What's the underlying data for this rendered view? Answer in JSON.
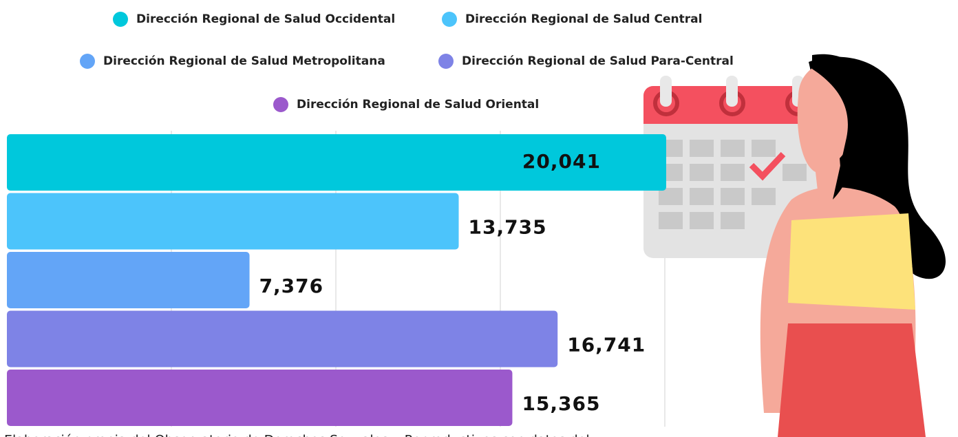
{
  "chart_data": {
    "type": "hbar",
    "categories": [
      "Dirección Regional de Salud Occidental",
      "Dirección Regional de Salud Central",
      "Dirección Regional de Salud Metropolitana",
      "Dirección Regional de Salud Para-Central",
      "Dirección Regional de Salud Oriental"
    ],
    "values": [
      20041,
      13735,
      7376,
      16741,
      15365
    ],
    "value_labels": [
      "20,041",
      "13,735",
      "7,376",
      "16,741",
      "15,365"
    ],
    "colors": [
      "#00c8dc",
      "#4cc4fb",
      "#63a5f7",
      "#7e83e6",
      "#9b59cc"
    ],
    "xlim": [
      0,
      25000
    ],
    "xticks": [
      5000,
      10000,
      15000,
      20000,
      25000
    ],
    "grid": true,
    "source": "Elaboración propia del Observatorio de Derechos Sexuales y Reproductivos con datos del"
  }
}
